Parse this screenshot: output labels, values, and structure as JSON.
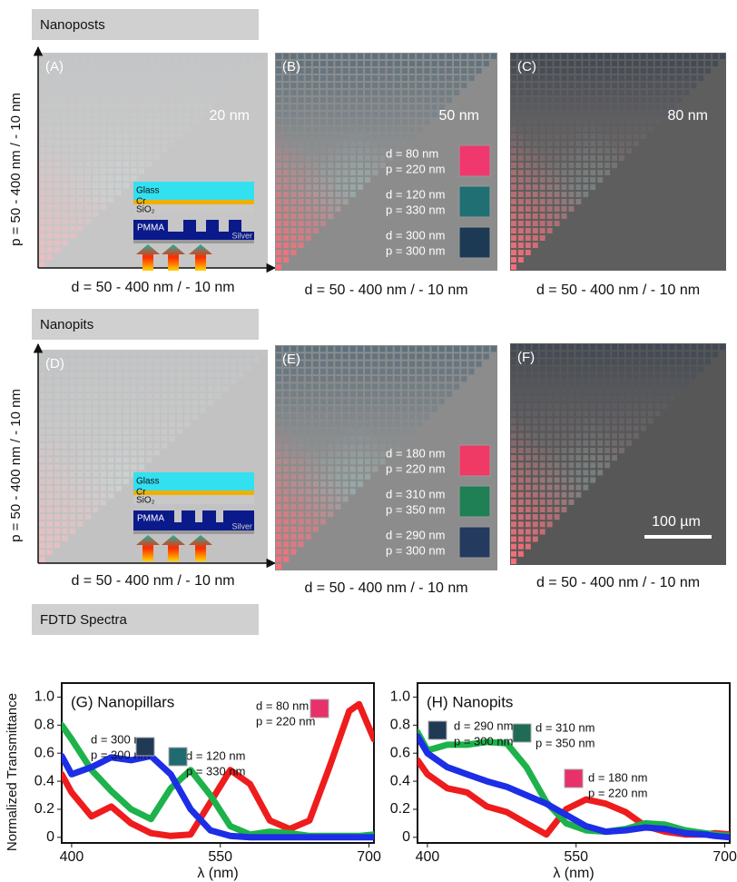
{
  "sections": [
    "Nanoposts",
    "Nanopits",
    "FDTD Spectra"
  ],
  "panels": [
    {
      "label": "(A)",
      "ylabel": "p = 50 - 400 nm / - 10 nm",
      "xlabel": "d = 50 - 400 nm / - 10 nm",
      "size": "20 nm"
    },
    {
      "label": "(B)",
      "xlabel": "d = 50 - 400 nm / - 10 nm",
      "size": "50 nm",
      "legend": [
        {
          "lines": [
            "d = 80 nm",
            "p = 220 nm"
          ],
          "color": "#f0386e"
        },
        {
          "lines": [
            "d = 120 nm",
            "p = 330 nm"
          ],
          "color": "#1f6f73"
        },
        {
          "lines": [
            "d = 300 nm",
            "p = 300 nm"
          ],
          "color": "#1d3a55"
        }
      ]
    },
    {
      "label": "(C)",
      "xlabel": "d = 50 - 400 nm / - 10 nm",
      "size": "80 nm"
    },
    {
      "label": "(D)",
      "ylabel": "p = 50 - 400 nm / - 10 nm",
      "xlabel": "d = 50 - 400 nm / - 10 nm"
    },
    {
      "label": "(E)",
      "xlabel": "d = 50 - 400 nm / - 10 nm",
      "legend": [
        {
          "lines": [
            "d = 180 nm",
            "p = 220 nm"
          ],
          "color": "#f03a66"
        },
        {
          "lines": [
            "d = 310 nm",
            "p = 350 nm"
          ],
          "color": "#1f7f55"
        },
        {
          "lines": [
            "d = 290 nm",
            "p = 300 nm"
          ],
          "color": "#243a5e"
        }
      ]
    },
    {
      "label": "(F)",
      "xlabel": "d = 50 - 400 nm / - 10 nm",
      "scale_bar": "100 µm"
    }
  ],
  "inset": {
    "layers": [
      "Glass",
      "Cr",
      "SiO₂"
    ],
    "resist": "PMMA",
    "substrate": "Silver"
  },
  "chart_data": [
    {
      "type": "line",
      "title": "(G) Nanopillars",
      "ylabel": "Normalized Transmittance",
      "xlabel": "λ (nm)",
      "x": [
        390,
        400,
        420,
        440,
        460,
        480,
        500,
        520,
        540,
        560,
        580,
        600,
        620,
        640,
        660,
        680,
        690,
        705
      ],
      "xlim": [
        390,
        705
      ],
      "xticks": [
        400,
        550,
        700
      ],
      "ylim": [
        -0.04,
        1.1
      ],
      "yticks": [
        0,
        0.2,
        0.4,
        0.6,
        0.8,
        {
          "value": 1,
          "label": "1.0"
        }
      ],
      "series": [
        {
          "color": "#ee1c1c",
          "values": [
            0.45,
            0.32,
            0.15,
            0.22,
            0.1,
            0.03,
            0.01,
            0.02,
            0.25,
            0.48,
            0.38,
            0.12,
            0.06,
            0.12,
            0.5,
            0.9,
            0.95,
            0.7
          ]
        },
        {
          "color": "#1db24a",
          "values": [
            0.8,
            0.7,
            0.48,
            0.33,
            0.2,
            0.13,
            0.35,
            0.48,
            0.3,
            0.08,
            0.02,
            0.04,
            0.03,
            0.01,
            0.01,
            0.01,
            0.01,
            0.02
          ]
        },
        {
          "color": "#1c2ee6",
          "values": [
            0.58,
            0.45,
            0.5,
            0.57,
            0.55,
            0.58,
            0.45,
            0.2,
            0.05,
            0.01,
            0,
            0,
            0,
            0,
            0,
            0,
            0,
            0
          ]
        }
      ],
      "annotations": [
        {
          "lines": [
            "d = 80 nm",
            "p = 220 nm"
          ],
          "color": "#e8306a"
        },
        {
          "lines": [
            "d = 300 nm",
            "p = 300 nm"
          ],
          "color": "#203a56"
        },
        {
          "lines": [
            "d = 120 nm",
            "p = 330 nm"
          ],
          "color": "#1f6b70"
        }
      ]
    },
    {
      "type": "line",
      "title": "(H) Nanopits",
      "xlabel": "λ (nm)",
      "x": [
        390,
        400,
        420,
        440,
        460,
        480,
        500,
        520,
        540,
        560,
        580,
        600,
        620,
        640,
        660,
        680,
        690,
        705
      ],
      "xlim": [
        390,
        705
      ],
      "xticks": [
        400,
        550,
        700
      ],
      "ylim": [
        -0.04,
        1.1
      ],
      "yticks": [
        0,
        0.2,
        0.4,
        0.6,
        0.8,
        {
          "value": 1,
          "label": "1.0"
        }
      ],
      "series": [
        {
          "color": "#ee1c1c",
          "values": [
            0.55,
            0.45,
            0.35,
            0.32,
            0.22,
            0.18,
            0.1,
            0.02,
            0.2,
            0.27,
            0.24,
            0.18,
            0.08,
            0.04,
            0.02,
            0.02,
            0.03,
            0.02
          ]
        },
        {
          "color": "#1db24a",
          "values": [
            0.75,
            0.62,
            0.66,
            0.66,
            0.68,
            0.67,
            0.5,
            0.25,
            0.1,
            0.05,
            0.04,
            0.06,
            0.1,
            0.09,
            0.05,
            0.03,
            0.02,
            0.01
          ]
        },
        {
          "color": "#1c2ee6",
          "values": [
            0.72,
            0.6,
            0.5,
            0.45,
            0.4,
            0.36,
            0.3,
            0.24,
            0.16,
            0.08,
            0.04,
            0.05,
            0.07,
            0.06,
            0.03,
            0.02,
            0.01,
            0
          ]
        }
      ],
      "annotations": [
        {
          "lines": [
            "d = 290 nm",
            "p = 300 nm"
          ],
          "color": "#203a56"
        },
        {
          "lines": [
            "d = 310 nm",
            "p = 350 nm"
          ],
          "color": "#1f6b55"
        },
        {
          "lines": [
            "d = 180 nm",
            "p = 220 nm"
          ],
          "color": "#e8306a"
        }
      ]
    }
  ]
}
